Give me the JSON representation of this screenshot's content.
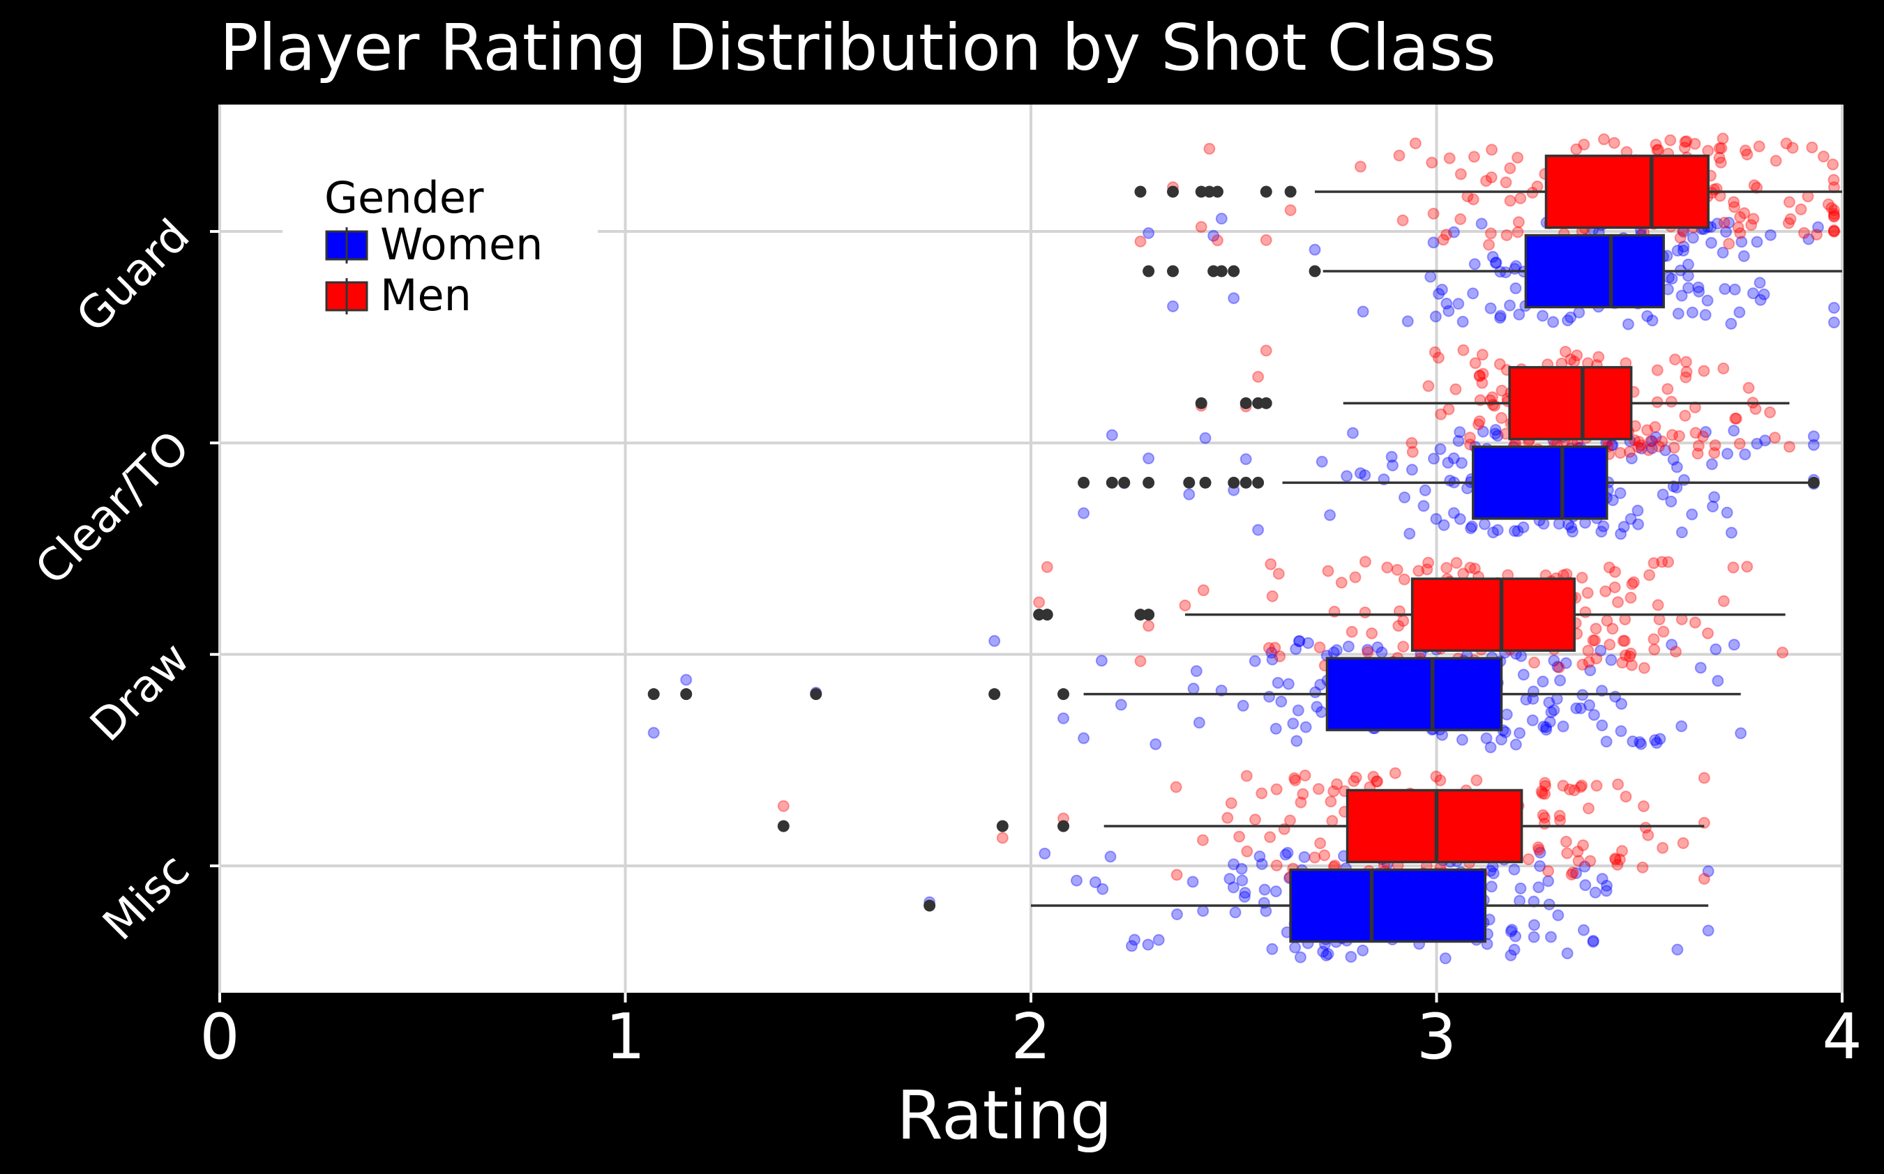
{
  "chart_data": {
    "type": "boxplot",
    "title": "Player Rating Distribution by Shot Class",
    "xlabel": "Rating",
    "ylabel": "",
    "xlim": [
      0,
      4
    ],
    "x_ticks": [
      "0",
      "1",
      "2",
      "3",
      "4"
    ],
    "categories": [
      "Guard",
      "Clear/TO",
      "Draw",
      "Misc"
    ],
    "grid": true,
    "legend": {
      "title": "Gender",
      "placement": "top-left",
      "entries": [
        "Women",
        "Men"
      ]
    },
    "series": [
      {
        "name": "Women",
        "color": "#0000ff",
        "boxes": [
          {
            "category": "Guard",
            "whisker_low": 2.72,
            "q1": 3.22,
            "median": 3.43,
            "q3": 3.56,
            "whisker_high": 4.0,
            "outliers": [
              2.29,
              2.35,
              2.45,
              2.47,
              2.5,
              2.7
            ]
          },
          {
            "category": "Clear/TO",
            "whisker_low": 2.62,
            "q1": 3.09,
            "median": 3.31,
            "q3": 3.42,
            "whisker_high": 3.93,
            "outliers": [
              2.13,
              2.2,
              2.23,
              2.29,
              2.39,
              2.43,
              2.5,
              2.53,
              2.56,
              3.93
            ]
          },
          {
            "category": "Draw",
            "whisker_low": 2.13,
            "q1": 2.73,
            "median": 2.99,
            "q3": 3.16,
            "whisker_high": 3.75,
            "outliers": [
              1.07,
              1.15,
              1.47,
              1.91,
              2.08
            ]
          },
          {
            "category": "Misc",
            "whisker_low": 2.0,
            "q1": 2.64,
            "median": 2.84,
            "q3": 3.12,
            "whisker_high": 3.67,
            "outliers": [
              1.75
            ]
          }
        ]
      },
      {
        "name": "Men",
        "color": "#ff0000",
        "boxes": [
          {
            "category": "Guard",
            "whisker_low": 2.7,
            "q1": 3.27,
            "median": 3.53,
            "q3": 3.67,
            "whisker_high": 4.0,
            "outliers": [
              2.27,
              2.35,
              2.42,
              2.44,
              2.46,
              2.58,
              2.64
            ]
          },
          {
            "category": "Clear/TO",
            "whisker_low": 2.77,
            "q1": 3.18,
            "median": 3.36,
            "q3": 3.48,
            "whisker_high": 3.87,
            "outliers": [
              2.42,
              2.53,
              2.56,
              2.58
            ]
          },
          {
            "category": "Draw",
            "whisker_low": 2.38,
            "q1": 2.94,
            "median": 3.16,
            "q3": 3.34,
            "whisker_high": 3.86,
            "outliers": [
              2.02,
              2.04,
              2.27,
              2.29
            ]
          },
          {
            "category": "Misc",
            "whisker_low": 2.18,
            "q1": 2.78,
            "median": 3.0,
            "q3": 3.21,
            "whisker_high": 3.66,
            "outliers": [
              1.39,
              1.93,
              2.08
            ]
          }
        ]
      }
    ]
  }
}
